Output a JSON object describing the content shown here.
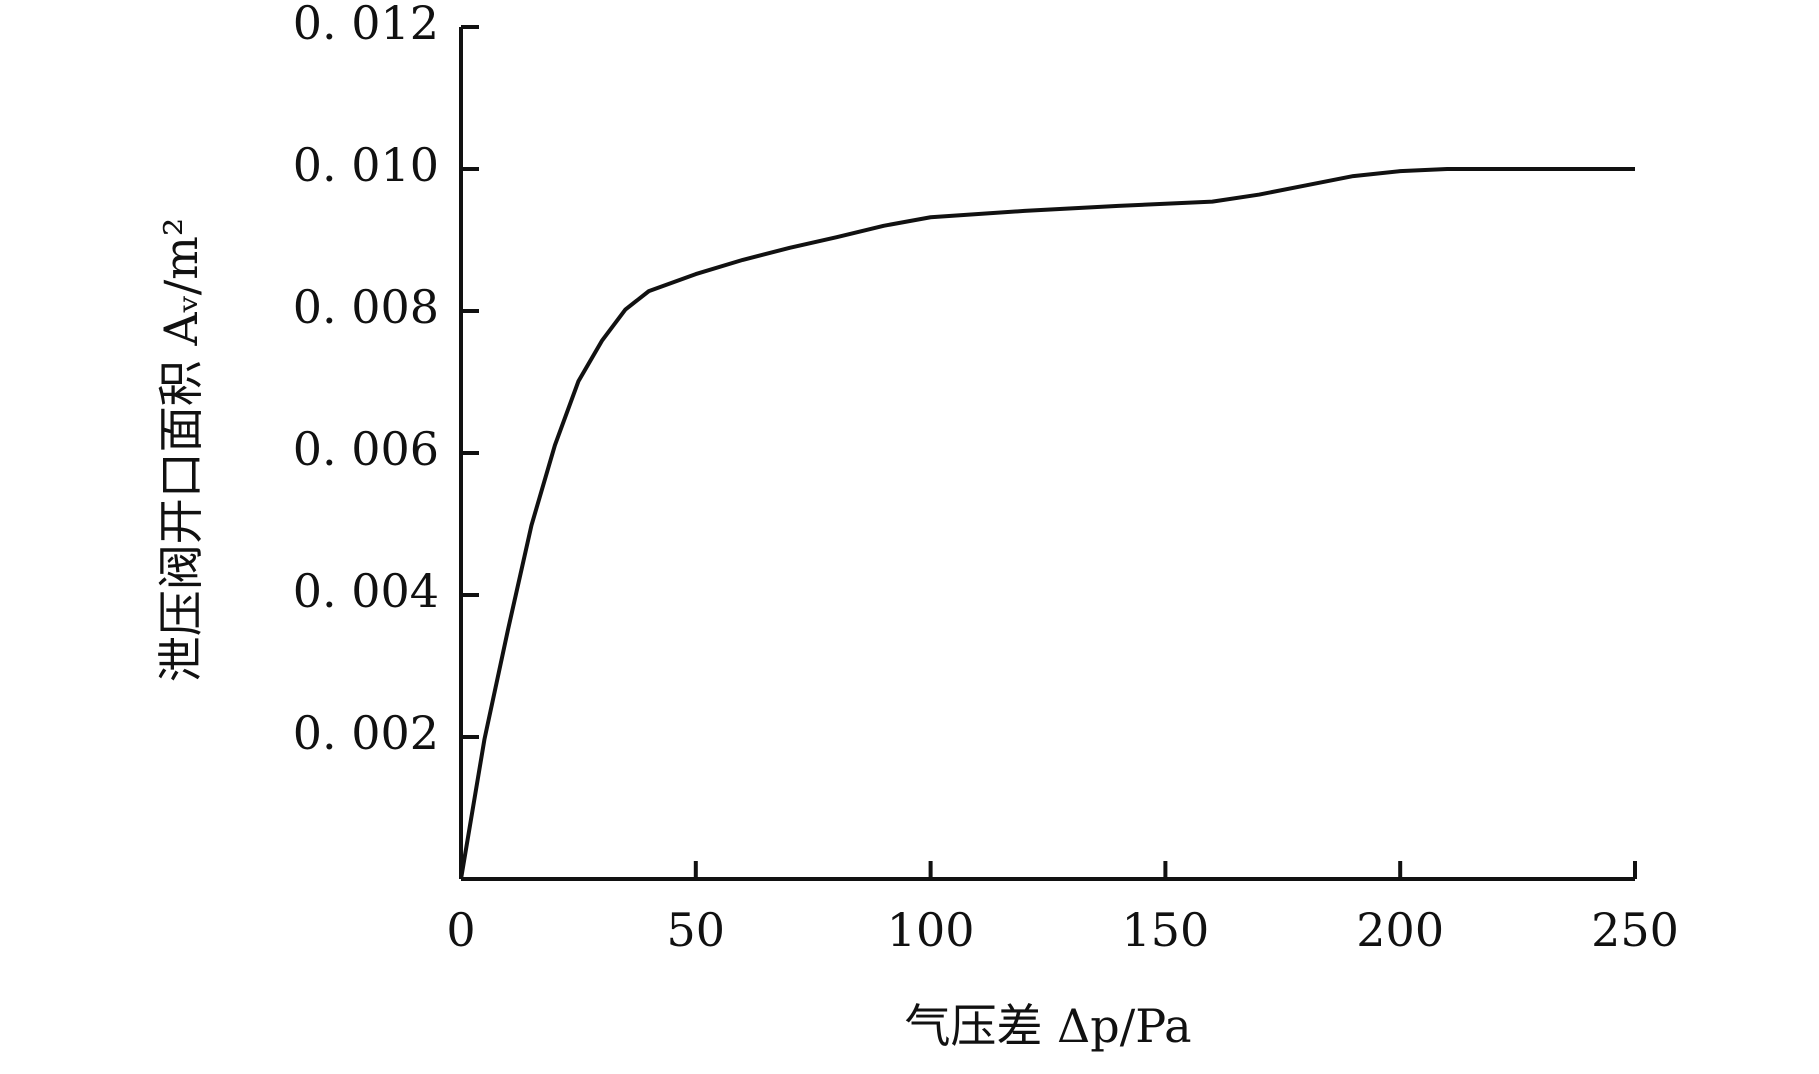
{
  "chart_data": {
    "type": "line",
    "x_label": "气压差 Δp/Pa",
    "y_label": "泄压阀开口面积 Aᵥ/m²",
    "series": [
      {
        "color": "#111111",
        "x": [
          0,
          5,
          10,
          15,
          20,
          25,
          30,
          35,
          40,
          50,
          60,
          70,
          80,
          90,
          100,
          120,
          140,
          160,
          170,
          180,
          190,
          200,
          210,
          250
        ],
        "values": [
          0,
          0.00197,
          0.00351,
          0.00498,
          0.00611,
          0.00701,
          0.00758,
          0.00802,
          0.00828,
          0.00852,
          0.00872,
          0.00889,
          0.00904,
          0.0092,
          0.00932,
          0.00941,
          0.00948,
          0.00954,
          0.00964,
          0.00977,
          0.0099,
          0.00997,
          0.01,
          0.01
        ]
      }
    ],
    "xlim": [
      0,
      250
    ],
    "xticks": [
      0,
      50,
      100,
      150,
      200,
      250
    ],
    "ylim": [
      0,
      0.012
    ],
    "yticks": [
      {
        "value": 0.002,
        "label": "0. 002"
      },
      {
        "value": 0.004,
        "label": "0. 004"
      },
      {
        "value": 0.006,
        "label": "0. 006"
      },
      {
        "value": 0.008,
        "label": "0. 008"
      },
      {
        "value": 0.01,
        "label": "0. 010"
      },
      {
        "value": 0.012,
        "label": "0. 012"
      }
    ],
    "grid": false
  }
}
